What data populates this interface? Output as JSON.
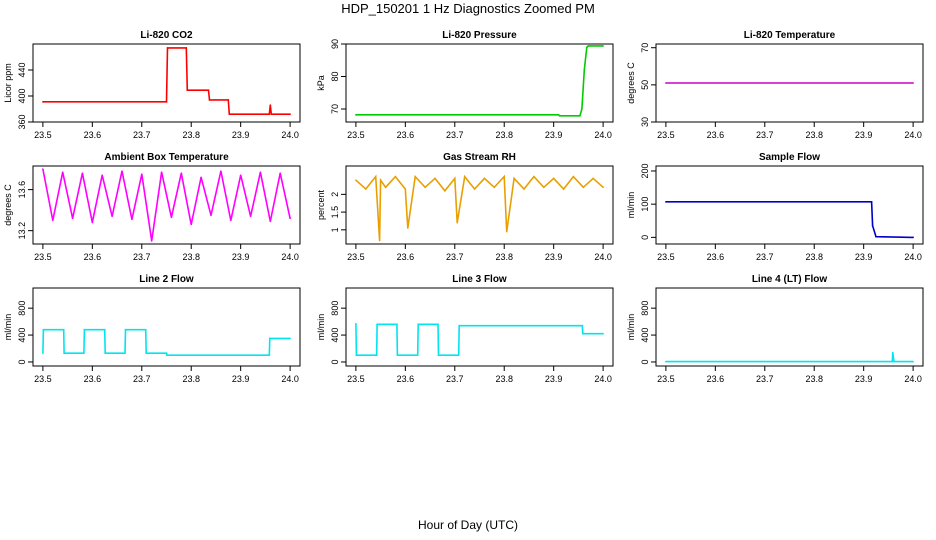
{
  "figure": {
    "title": "HDP_150201  1 Hz Diagnostics Zoomed PM",
    "xlabel": "Hour of Day (UTC)"
  },
  "chart_data": [
    {
      "type": "line",
      "title": "Li-820 CO2",
      "ylabel": "Licor ppm",
      "color": "#ff0000",
      "xlim": [
        23.48,
        24.02
      ],
      "ylim": [
        360,
        480
      ],
      "yticks": [
        360,
        400,
        440
      ],
      "xticks": [
        23.5,
        23.6,
        23.7,
        23.8,
        23.9,
        24.0
      ],
      "x": [
        23.5,
        23.75,
        23.752,
        23.79,
        23.792,
        23.835,
        23.837,
        23.875,
        23.877,
        23.958,
        23.96,
        23.962,
        23.966,
        24.0
      ],
      "y": [
        391,
        391,
        474,
        474,
        409,
        409,
        394,
        394,
        372,
        372,
        386,
        372,
        372,
        372
      ]
    },
    {
      "type": "line",
      "title": "Li-820 Pressure",
      "ylabel": "kPa",
      "color": "#00cc00",
      "xlim": [
        23.48,
        24.02
      ],
      "ylim": [
        66,
        90
      ],
      "yticks": [
        70,
        80,
        90
      ],
      "xticks": [
        23.5,
        23.6,
        23.7,
        23.8,
        23.9,
        24.0
      ],
      "x": [
        23.5,
        23.91,
        23.912,
        23.953,
        23.957,
        23.962,
        23.967,
        23.97,
        24.0
      ],
      "y": [
        68.2,
        68.2,
        67.9,
        67.9,
        70,
        82,
        89,
        89.4,
        89.4
      ]
    },
    {
      "type": "line",
      "title": "Li-820 Temperature",
      "ylabel": "degrees C",
      "color": "#cc00cc",
      "xlim": [
        23.48,
        24.02
      ],
      "ylim": [
        30,
        72
      ],
      "yticks": [
        30,
        50,
        70
      ],
      "xticks": [
        23.5,
        23.6,
        23.7,
        23.8,
        23.9,
        24.0
      ],
      "x": [
        23.5,
        24.0
      ],
      "y": [
        51,
        51
      ]
    },
    {
      "type": "line",
      "title": "Ambient Box Temperature",
      "ylabel": "degrees C",
      "color": "#ff00ff",
      "xlim": [
        23.48,
        24.02
      ],
      "ylim": [
        13.07,
        13.83
      ],
      "yticks": [
        13.2,
        13.6
      ],
      "xticks": [
        23.5,
        23.6,
        23.7,
        23.8,
        23.9,
        24.0
      ],
      "x": [
        23.5,
        23.52,
        23.54,
        23.56,
        23.58,
        23.6,
        23.62,
        23.64,
        23.66,
        23.68,
        23.7,
        23.72,
        23.74,
        23.76,
        23.78,
        23.8,
        23.82,
        23.84,
        23.86,
        23.88,
        23.9,
        23.92,
        23.94,
        23.96,
        23.98,
        24.0
      ],
      "y": [
        13.8,
        13.3,
        13.77,
        13.32,
        13.76,
        13.28,
        13.74,
        13.34,
        13.78,
        13.31,
        13.75,
        13.1,
        13.77,
        13.33,
        13.76,
        13.26,
        13.72,
        13.35,
        13.78,
        13.3,
        13.74,
        13.34,
        13.77,
        13.29,
        13.76,
        13.32
      ]
    },
    {
      "type": "line",
      "title": "Gas Stream RH",
      "ylabel": "percent",
      "color": "#e8a000",
      "xlim": [
        23.48,
        24.02
      ],
      "ylim": [
        0.6,
        2.8
      ],
      "yticks": [
        1.0,
        1.5,
        2.0
      ],
      "xticks": [
        23.5,
        23.6,
        23.7,
        23.8,
        23.9,
        24.0
      ],
      "x": [
        23.5,
        23.52,
        23.54,
        23.548,
        23.55,
        23.56,
        23.58,
        23.6,
        23.605,
        23.62,
        23.64,
        23.66,
        23.68,
        23.7,
        23.705,
        23.72,
        23.74,
        23.76,
        23.78,
        23.8,
        23.805,
        23.82,
        23.84,
        23.86,
        23.88,
        23.9,
        23.92,
        23.94,
        23.96,
        23.98,
        24.0
      ],
      "y": [
        2.4,
        2.15,
        2.5,
        0.7,
        2.4,
        2.2,
        2.5,
        2.15,
        1.05,
        2.5,
        2.2,
        2.45,
        2.1,
        2.45,
        1.2,
        2.5,
        2.15,
        2.45,
        2.2,
        2.5,
        0.95,
        2.45,
        2.15,
        2.5,
        2.2,
        2.45,
        2.15,
        2.5,
        2.2,
        2.45,
        2.2
      ]
    },
    {
      "type": "line",
      "title": "Sample Flow",
      "ylabel": "ml/min",
      "color": "#0000cc",
      "xlim": [
        23.48,
        24.02
      ],
      "ylim": [
        -20,
        215
      ],
      "yticks": [
        0,
        100,
        200
      ],
      "xticks": [
        23.5,
        23.6,
        23.7,
        23.8,
        23.9,
        24.0
      ],
      "x": [
        23.5,
        23.916,
        23.918,
        23.925,
        24.0
      ],
      "y": [
        107,
        107,
        35,
        2,
        0
      ]
    },
    {
      "type": "line",
      "title": "Line 2 Flow",
      "ylabel": "ml/min",
      "color": "#00e5ee",
      "xlim": [
        23.48,
        24.02
      ],
      "ylim": [
        -60,
        1100
      ],
      "yticks": [
        0,
        400,
        800
      ],
      "xticks": [
        23.5,
        23.6,
        23.7,
        23.8,
        23.9,
        24.0
      ],
      "x": [
        23.5,
        23.501,
        23.542,
        23.543,
        23.583,
        23.584,
        23.625,
        23.626,
        23.666,
        23.667,
        23.708,
        23.709,
        23.75,
        23.751,
        23.958,
        23.959,
        24.0
      ],
      "y": [
        130,
        480,
        480,
        130,
        130,
        480,
        480,
        130,
        130,
        480,
        480,
        130,
        130,
        100,
        100,
        350,
        350
      ]
    },
    {
      "type": "line",
      "title": "Line 3 Flow",
      "ylabel": "ml/min",
      "color": "#00e5ee",
      "xlim": [
        23.48,
        24.02
      ],
      "ylim": [
        -60,
        1100
      ],
      "yticks": [
        0,
        400,
        800
      ],
      "xticks": [
        23.5,
        23.6,
        23.7,
        23.8,
        23.9,
        24.0
      ],
      "x": [
        23.5,
        23.501,
        23.508,
        23.542,
        23.543,
        23.583,
        23.584,
        23.625,
        23.626,
        23.666,
        23.667,
        23.708,
        23.709,
        23.958,
        23.959,
        24.0
      ],
      "y": [
        570,
        100,
        100,
        100,
        560,
        560,
        100,
        100,
        560,
        560,
        100,
        100,
        540,
        540,
        420,
        420
      ]
    },
    {
      "type": "line",
      "title": "Line 4 (LT) Flow",
      "ylabel": "ml/min",
      "color": "#00e5ee",
      "xlim": [
        23.48,
        24.02
      ],
      "ylim": [
        -60,
        1100
      ],
      "yticks": [
        0,
        400,
        800
      ],
      "xticks": [
        23.5,
        23.6,
        23.7,
        23.8,
        23.9,
        24.0
      ],
      "x": [
        23.5,
        23.958,
        23.959,
        23.961,
        23.962,
        24.0
      ],
      "y": [
        5,
        5,
        140,
        20,
        5,
        5
      ]
    }
  ]
}
